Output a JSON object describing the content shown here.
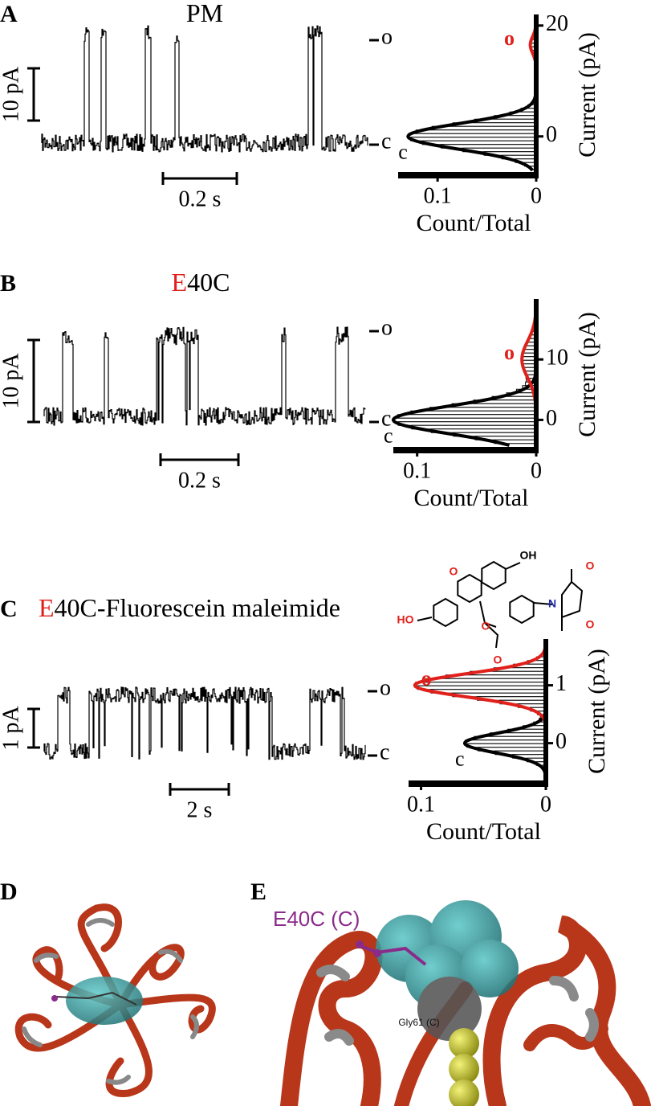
{
  "panels": [
    {
      "label": "A",
      "title": [
        {
          "text": "PM",
          "color": "#000000"
        }
      ],
      "scale_bars": {
        "current": "10 pA",
        "time": "0.2 s"
      },
      "levels": [
        "o",
        "c"
      ],
      "histogram": {
        "xlim": [
          0.14,
          0
        ],
        "xticks": [
          0.1,
          0
        ],
        "ylim": [
          -7,
          22
        ],
        "yticks": [
          0,
          20
        ],
        "xlabel": "Count/Total",
        "ylabel": "Current (pA)",
        "components": [
          {
            "label": "c",
            "mean": 0,
            "sd": 2.3,
            "peak": 0.13,
            "color": "#000000"
          },
          {
            "label": "o",
            "mean": 16.5,
            "sd": 1.5,
            "peak": 0.006,
            "color": "#e0201b"
          }
        ]
      }
    },
    {
      "label": "B",
      "title": [
        {
          "text": "E",
          "color": "#e0201b"
        },
        {
          "text": "40C",
          "color": "#000000"
        }
      ],
      "scale_bars": {
        "current": "10 pA",
        "time": "0.2 s"
      },
      "levels": [
        "o",
        "c"
      ],
      "histogram": {
        "xlim": [
          0.12,
          0
        ],
        "xticks": [
          0.1,
          0
        ],
        "ylim": [
          -5,
          20
        ],
        "yticks": [
          0,
          10
        ],
        "xlabel": "Count/Total",
        "ylabel": "Current (pA)",
        "components": [
          {
            "label": "c",
            "mean": 0,
            "sd": 2.3,
            "peak": 0.12,
            "color": "#000000"
          },
          {
            "label": "o",
            "mean": 10,
            "sd": 3,
            "peak": 0.012,
            "color": "#e0201b"
          }
        ]
      }
    },
    {
      "label": "C",
      "title": [
        {
          "text": "E",
          "color": "#e0201b"
        },
        {
          "text": "40C-Fluorescein maleimide",
          "color": "#000000"
        }
      ],
      "scale_bars": {
        "current": "1 pA",
        "time": "2 s"
      },
      "levels": [
        "o",
        "c"
      ],
      "structure_labels": [
        "OH",
        "O",
        "HO",
        "O",
        "O",
        "N",
        "O",
        "O"
      ],
      "histogram": {
        "xlim": [
          0.11,
          0
        ],
        "xticks": [
          0.1,
          0
        ],
        "ylim": [
          -0.7,
          1.8
        ],
        "yticks": [
          0,
          1
        ],
        "xlabel": "Count/Total",
        "ylabel": "Current (pA)",
        "components": [
          {
            "label": "c",
            "mean": 0,
            "sd": 0.17,
            "peak": 0.065,
            "color": "#000000"
          },
          {
            "label": "o",
            "mean": 1,
            "sd": 0.2,
            "peak": 0.105,
            "color": "#e0201b"
          }
        ]
      }
    },
    {
      "label": "D"
    },
    {
      "label": "E",
      "annotations": [
        "E40C (C)",
        "Gly61 (C)"
      ]
    }
  ]
}
